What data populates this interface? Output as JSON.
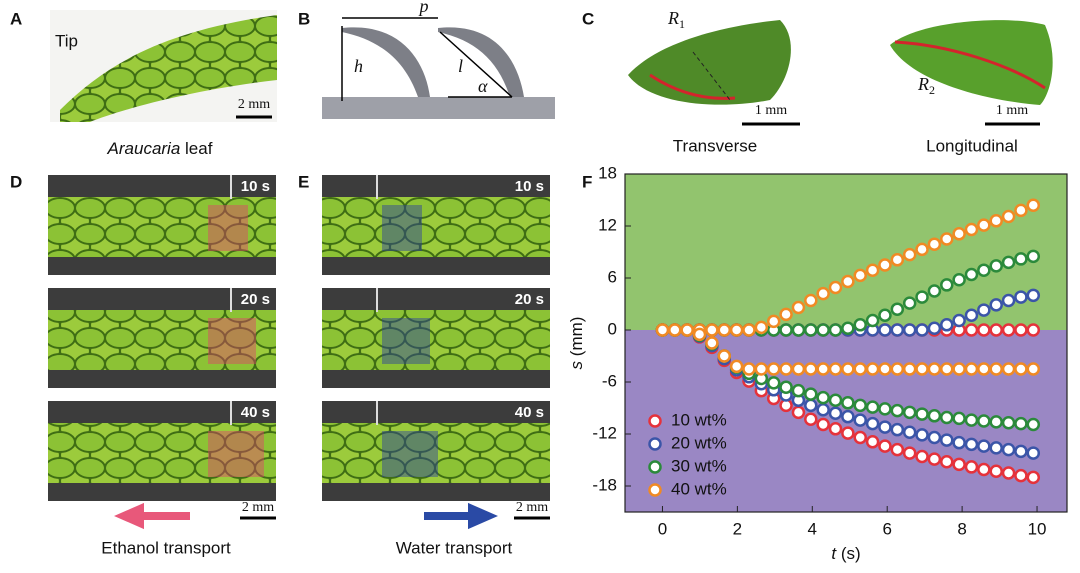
{
  "panels": {
    "A": {
      "label": "A",
      "tip": "Tip",
      "scale": "2 mm",
      "caption_italic": "Araucaria",
      "caption": "leaf"
    },
    "B": {
      "label": "B",
      "p": "p",
      "h": "h",
      "l": "l",
      "alpha": "α"
    },
    "C": {
      "label": "C",
      "r1": "R",
      "r1_sub": "1",
      "r2": "R",
      "r2_sub": "2",
      "scale1": "1 mm",
      "scale2": "1 mm",
      "transverse": "Transverse",
      "longitudinal": "Longitudinal"
    },
    "D": {
      "label": "D",
      "times": [
        "10 s",
        "20 s",
        "40 s"
      ],
      "scale": "2 mm",
      "caption": "Ethanol transport"
    },
    "E": {
      "label": "E",
      "times": [
        "10 s",
        "20 s",
        "40 s"
      ],
      "scale": "2 mm",
      "caption": "Water transport"
    }
  },
  "chart_data": {
    "type": "scatter",
    "label": "F",
    "xlabel_var": "t",
    "xlabel_unit": "(s)",
    "ylabel_var": "s",
    "ylabel_unit": "(mm)",
    "xlim": [
      -1,
      10.8
    ],
    "ylim": [
      -21,
      18
    ],
    "xticks": [
      0,
      2,
      4,
      6,
      8,
      10
    ],
    "yticks": [
      18,
      12,
      6,
      0,
      -6,
      -12,
      -18
    ],
    "background_colors": {
      "positive": "#92c46e",
      "negative": "#9a87c4"
    },
    "legend": "lower left",
    "x": [
      0,
      0.33,
      0.66,
      0.99,
      1.32,
      1.65,
      1.98,
      2.31,
      2.64,
      2.97,
      3.3,
      3.63,
      3.96,
      4.29,
      4.62,
      4.95,
      5.28,
      5.61,
      5.94,
      6.27,
      6.6,
      6.93,
      7.26,
      7.59,
      7.92,
      8.25,
      8.58,
      8.91,
      9.24,
      9.57,
      9.9
    ],
    "series": [
      {
        "name": "10 wt%",
        "color": "#e5323b",
        "upper": [
          0,
          0,
          0,
          0,
          0,
          0,
          0,
          0,
          0,
          0,
          0,
          0,
          0,
          0,
          0,
          0,
          0,
          0,
          0,
          0,
          0,
          0,
          0,
          0,
          0,
          0,
          0,
          0,
          0,
          0,
          0
        ],
        "lower": [
          0,
          0,
          0,
          -0.8,
          -2,
          -3.5,
          -4.9,
          -5.9,
          -7,
          -7.9,
          -8.7,
          -9.5,
          -10.3,
          -10.9,
          -11.4,
          -11.9,
          -12.4,
          -12.9,
          -13.4,
          -13.8,
          -14.2,
          -14.6,
          -14.9,
          -15.2,
          -15.5,
          -15.8,
          -16.1,
          -16.3,
          -16.5,
          -16.8,
          -17
        ]
      },
      {
        "name": "20 wt%",
        "color": "#3b55a8",
        "upper": [
          0,
          0,
          0,
          0,
          0,
          0,
          0,
          0,
          0,
          0,
          0,
          0,
          0,
          0,
          0,
          0,
          0,
          0,
          0,
          0,
          0,
          0,
          0.2,
          0.6,
          1.1,
          1.7,
          2.3,
          2.9,
          3.4,
          3.8,
          4.0
        ],
        "lower": [
          0,
          0,
          0,
          -0.7,
          -1.8,
          -3.3,
          -4.6,
          -5.4,
          -6.2,
          -6.9,
          -7.5,
          -8.1,
          -8.7,
          -9.2,
          -9.6,
          -10,
          -10.4,
          -10.8,
          -11.2,
          -11.5,
          -11.8,
          -12.1,
          -12.4,
          -12.7,
          -13,
          -13.2,
          -13.4,
          -13.6,
          -13.8,
          -14,
          -14.2
        ]
      },
      {
        "name": "30 wt%",
        "color": "#2b8a3b",
        "upper": [
          0,
          0,
          0,
          0,
          0,
          0,
          0,
          0,
          0,
          0,
          0,
          0,
          0,
          0,
          0,
          0.2,
          0.6,
          1.1,
          1.7,
          2.4,
          3.1,
          3.8,
          4.5,
          5.2,
          5.8,
          6.4,
          6.9,
          7.4,
          7.8,
          8.2,
          8.5
        ],
        "lower": [
          0,
          0,
          0,
          -0.6,
          -1.6,
          -3,
          -4.3,
          -5,
          -5.6,
          -6.1,
          -6.6,
          -7,
          -7.4,
          -7.8,
          -8.1,
          -8.4,
          -8.7,
          -8.9,
          -9.1,
          -9.3,
          -9.5,
          -9.7,
          -9.9,
          -10.1,
          -10.2,
          -10.4,
          -10.5,
          -10.6,
          -10.7,
          -10.8,
          -10.9
        ]
      },
      {
        "name": "40 wt%",
        "color": "#f08a24",
        "upper": [
          0,
          0,
          0,
          0,
          0,
          0,
          0,
          0,
          0.3,
          1,
          1.8,
          2.6,
          3.4,
          4.2,
          4.9,
          5.6,
          6.3,
          6.9,
          7.5,
          8.1,
          8.7,
          9.3,
          9.9,
          10.5,
          11.1,
          11.6,
          12.1,
          12.6,
          13.1,
          13.8,
          14.4
        ],
        "lower": [
          0,
          0,
          0,
          -0.5,
          -1.5,
          -3,
          -4.2,
          -4.5,
          -4.5,
          -4.5,
          -4.5,
          -4.5,
          -4.5,
          -4.5,
          -4.5,
          -4.5,
          -4.5,
          -4.5,
          -4.5,
          -4.5,
          -4.5,
          -4.5,
          -4.5,
          -4.5,
          -4.5,
          -4.5,
          -4.5,
          -4.5,
          -4.5,
          -4.5,
          -4.5
        ]
      }
    ]
  }
}
